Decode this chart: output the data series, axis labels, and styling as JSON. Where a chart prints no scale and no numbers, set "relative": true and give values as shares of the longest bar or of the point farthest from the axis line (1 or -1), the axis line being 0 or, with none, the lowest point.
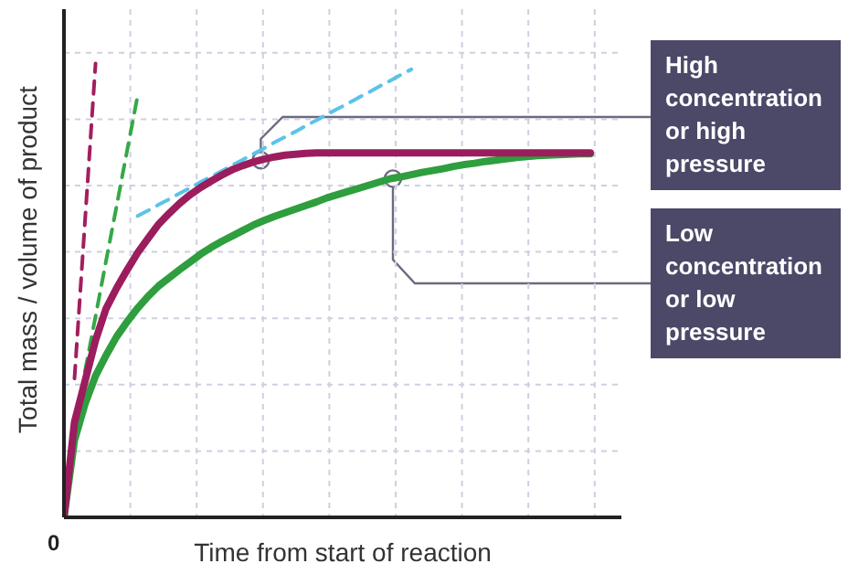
{
  "chart_data": {
    "type": "line",
    "relative": true,
    "xlabel": "Time from start of reaction",
    "ylabel": "Total mass / volume of product",
    "grid": true,
    "marker": "none",
    "line_style": "solid",
    "categories": [
      null,
      null,
      null,
      null,
      null,
      null,
      null,
      null,
      null,
      null,
      null,
      null,
      null,
      null,
      null,
      null,
      null,
      null,
      null,
      null,
      null,
      null,
      null,
      null,
      null,
      null,
      null,
      null,
      null,
      null,
      null,
      null,
      null,
      null,
      null,
      null,
      null,
      null,
      null,
      null,
      null,
      null,
      null,
      null,
      null,
      null,
      null,
      null,
      null,
      null,
      null
    ],
    "series": [
      {
        "color": "#5bc3ea",
        "line_style": "dashed",
        "values": [
          null,
          null,
          null,
          null,
          null,
          null,
          null,
          0.664,
          0.676,
          0.689,
          0.701,
          0.714,
          0.726,
          0.739,
          0.751,
          0.763,
          0.776,
          0.788,
          0.801,
          0.813,
          0.826,
          0.838,
          0.85,
          0.863,
          0.875,
          0.888,
          0.9,
          0.912,
          0.925,
          0.937,
          0.95,
          0.962,
          0.975,
          0.987,
          null,
          null,
          null,
          null,
          null,
          null,
          null,
          null,
          null,
          null,
          null,
          null,
          null,
          null,
          null,
          null,
          null
        ]
      },
      {
        "color": "#a21f5f",
        "line_style": "dashed",
        "values": [
          null,
          0.306,
          0.653,
          1.0,
          null,
          null,
          null,
          null,
          null,
          null,
          null,
          null,
          null,
          null,
          null,
          null,
          null,
          null,
          null,
          null,
          null,
          null,
          null,
          null,
          null,
          null,
          null,
          null,
          null,
          null,
          null,
          null,
          null,
          null,
          null,
          null,
          null,
          null,
          null,
          null,
          null,
          null,
          null,
          null,
          null,
          null,
          null,
          null,
          null,
          null,
          null
        ]
      },
      {
        "color": "#35a847",
        "line_style": "dashed",
        "values": [
          null,
          null,
          0.322,
          0.443,
          0.565,
          0.686,
          0.808,
          0.929,
          null,
          null,
          null,
          null,
          null,
          null,
          null,
          null,
          null,
          null,
          null,
          null,
          null,
          null,
          null,
          null,
          null,
          null,
          null,
          null,
          null,
          null,
          null,
          null,
          null,
          null,
          null,
          null,
          null,
          null,
          null,
          null,
          null,
          null,
          null,
          null,
          null,
          null,
          null,
          null,
          null,
          null,
          null
        ]
      },
      {
        "color": "#2e9e3e",
        "values": [
          0,
          0.17,
          0.25,
          0.312,
          0.357,
          0.398,
          0.431,
          0.461,
          0.487,
          0.51,
          0.528,
          0.546,
          0.563,
          0.58,
          0.595,
          0.608,
          0.62,
          0.632,
          0.644,
          0.654,
          0.663,
          0.671,
          0.679,
          0.687,
          0.695,
          0.704,
          0.711,
          0.718,
          0.725,
          0.732,
          0.739,
          0.746,
          0.75,
          0.755,
          0.76,
          0.764,
          0.768,
          0.773,
          0.777,
          0.78,
          0.784,
          0.787,
          0.79,
          0.793,
          0.795,
          0.797,
          0.798,
          0.799,
          0.8,
          0.801,
          0.801
        ]
      },
      {
        "color": "#9b1d5e",
        "values": [
          0,
          0.21,
          0.3,
          0.39,
          0.46,
          0.505,
          0.545,
          0.583,
          0.615,
          0.646,
          0.67,
          0.692,
          0.711,
          0.727,
          0.741,
          0.754,
          0.766,
          0.775,
          0.783,
          0.789,
          0.794,
          0.798,
          0.8,
          0.802,
          0.803,
          0.803,
          0.803,
          0.803,
          0.803,
          0.803,
          0.803,
          0.803,
          0.803,
          0.803,
          0.803,
          0.803,
          0.803,
          0.803,
          0.803,
          0.803,
          0.803,
          0.803,
          0.803,
          0.803,
          0.803,
          0.803,
          0.803,
          0.803,
          0.803,
          0.803,
          0.803
        ]
      }
    ],
    "annotations": [
      "0",
      "High concentration or high pressure",
      "Low concentration or low pressure"
    ]
  }
}
